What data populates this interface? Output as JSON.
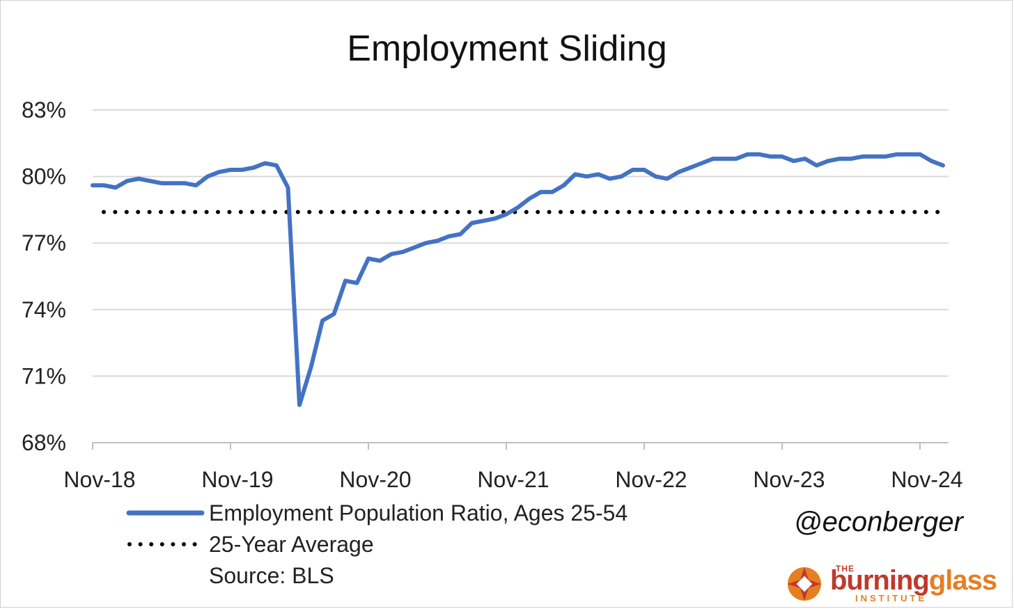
{
  "chart_data": {
    "type": "line",
    "title": "Employment Sliding",
    "ylim": [
      68,
      83
    ],
    "y_ticks": [
      "83%",
      "80%",
      "77%",
      "74%",
      "71%",
      "68%"
    ],
    "y_tick_values": [
      83,
      80,
      77,
      74,
      71,
      68
    ],
    "x_ticks": [
      "Nov-18",
      "Nov-19",
      "Nov-20",
      "Nov-21",
      "Nov-22",
      "Nov-23",
      "Nov-24"
    ],
    "grid": true,
    "legend_position": "bottom-left",
    "series": [
      {
        "name": "Employment Population Ratio, Ages 25-54",
        "color": "#4472c4",
        "style": "solid",
        "values": [
          79.6,
          79.6,
          79.5,
          79.8,
          79.9,
          79.8,
          79.7,
          79.7,
          79.7,
          79.6,
          80.0,
          80.2,
          80.3,
          80.3,
          80.4,
          80.6,
          80.5,
          79.5,
          69.7,
          71.4,
          73.5,
          73.8,
          75.3,
          75.2,
          76.3,
          76.2,
          76.5,
          76.6,
          76.8,
          77.0,
          77.1,
          77.3,
          77.4,
          77.9,
          78.0,
          78.1,
          78.3,
          78.6,
          79.0,
          79.3,
          79.3,
          79.6,
          80.1,
          80.0,
          80.1,
          79.9,
          80.0,
          80.3,
          80.3,
          80.0,
          79.9,
          80.2,
          80.4,
          80.6,
          80.8,
          80.8,
          80.8,
          81.0,
          81.0,
          80.9,
          80.9,
          80.7,
          80.8,
          80.5,
          80.7,
          80.8,
          80.8,
          80.9,
          80.9,
          80.9,
          81.0,
          81.0,
          81.0,
          80.7,
          80.5
        ]
      },
      {
        "name": "25-Year Average",
        "color": "#000000",
        "style": "dotted",
        "values_constant": 78.4
      }
    ],
    "source_note": "Source: BLS"
  },
  "handle": "@econberger",
  "logo": {
    "the": "THE",
    "word1": "burning",
    "word2": "glass",
    "sub": "INSTITUTE"
  }
}
